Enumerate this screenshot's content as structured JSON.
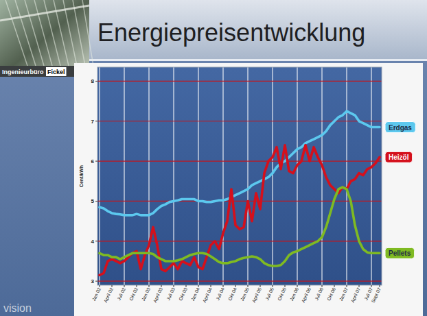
{
  "slide": {
    "title": "Energiepreisentwicklung",
    "logo": [
      "Ingenieurbüro",
      "Fickel"
    ],
    "footer": "vision"
  },
  "chart_data": {
    "type": "line",
    "y_label": "Cent/kWh",
    "categories": [
      "Jan 02",
      null,
      null,
      "April 02",
      null,
      null,
      "Juli 02",
      null,
      null,
      "Okt 02",
      null,
      null,
      "Jan 03",
      null,
      null,
      "April 03",
      null,
      null,
      "Juli 03",
      null,
      null,
      "Okt 03",
      null,
      null,
      "Jan 04",
      null,
      null,
      "April 04",
      null,
      null,
      "Juli 04",
      null,
      null,
      "Okt 04",
      null,
      null,
      "Jan 05",
      null,
      null,
      "April 05",
      null,
      null,
      "Juli 05",
      null,
      null,
      "Okt 05",
      null,
      null,
      "Jan 06",
      null,
      null,
      "April 06",
      null,
      null,
      "Juli 06",
      null,
      null,
      "Okt 06",
      null,
      null,
      "Jan 07",
      null,
      null,
      "April 07",
      null,
      null,
      "Juli 07",
      null,
      "Sept 07"
    ],
    "series": [
      {
        "name": "Erdgas",
        "color": "#5cc8ee",
        "values": [
          4.85,
          4.82,
          4.75,
          4.7,
          4.68,
          4.67,
          4.65,
          4.65,
          4.65,
          4.68,
          4.65,
          4.65,
          4.65,
          4.7,
          4.8,
          4.88,
          4.92,
          4.98,
          5.0,
          5.02,
          5.05,
          5.05,
          5.05,
          5.05,
          5.0,
          5.0,
          4.98,
          4.98,
          5.0,
          5.02,
          5.02,
          5.05,
          5.1,
          5.15,
          5.2,
          5.25,
          5.3,
          5.4,
          5.45,
          5.5,
          5.55,
          5.6,
          5.7,
          5.85,
          5.95,
          6.0,
          6.1,
          6.2,
          6.3,
          6.35,
          6.45,
          6.5,
          6.55,
          6.6,
          6.65,
          6.75,
          6.9,
          7.0,
          7.1,
          7.15,
          7.25,
          7.2,
          7.15,
          7.0,
          6.95,
          6.9,
          6.85,
          6.85,
          6.85
        ]
      },
      {
        "name": "Heizöl",
        "color": "#d4101c",
        "values": [
          3.15,
          3.2,
          3.5,
          3.55,
          3.5,
          3.45,
          3.5,
          3.6,
          3.7,
          3.75,
          3.3,
          3.65,
          3.9,
          4.35,
          3.9,
          3.3,
          3.25,
          3.35,
          3.45,
          3.3,
          3.5,
          3.45,
          3.4,
          3.6,
          3.35,
          3.3,
          3.6,
          3.9,
          4.0,
          3.8,
          4.2,
          4.5,
          5.3,
          4.4,
          4.3,
          4.35,
          5.0,
          4.5,
          5.2,
          4.8,
          5.7,
          6.0,
          6.1,
          6.35,
          5.8,
          6.4,
          5.75,
          5.7,
          5.9,
          6.0,
          6.4,
          6.0,
          6.35,
          6.1,
          5.9,
          5.6,
          5.4,
          5.3,
          5.2,
          5.35,
          5.3,
          5.5,
          5.55,
          5.7,
          5.65,
          5.8,
          5.85,
          5.95,
          6.1
        ]
      },
      {
        "name": "Pellets",
        "color": "#7fba22",
        "values": [
          3.7,
          3.65,
          3.65,
          3.6,
          3.6,
          3.55,
          3.6,
          3.65,
          3.7,
          3.7,
          3.7,
          3.7,
          3.7,
          3.68,
          3.6,
          3.55,
          3.5,
          3.5,
          3.5,
          3.52,
          3.55,
          3.6,
          3.65,
          3.68,
          3.7,
          3.7,
          3.68,
          3.62,
          3.55,
          3.48,
          3.45,
          3.45,
          3.48,
          3.5,
          3.55,
          3.58,
          3.6,
          3.62,
          3.6,
          3.55,
          3.45,
          3.4,
          3.38,
          3.38,
          3.4,
          3.5,
          3.65,
          3.72,
          3.75,
          3.8,
          3.85,
          3.9,
          3.95,
          4.0,
          4.1,
          4.35,
          4.7,
          5.05,
          5.3,
          5.35,
          5.3,
          5.0,
          4.4,
          4.0,
          3.8,
          3.72,
          3.7,
          3.7,
          3.7
        ]
      }
    ],
    "ylim": [
      2.9,
      8.35
    ],
    "yticks": [
      3,
      4,
      5,
      6,
      7,
      8
    ],
    "grid": true,
    "legend": "right"
  }
}
